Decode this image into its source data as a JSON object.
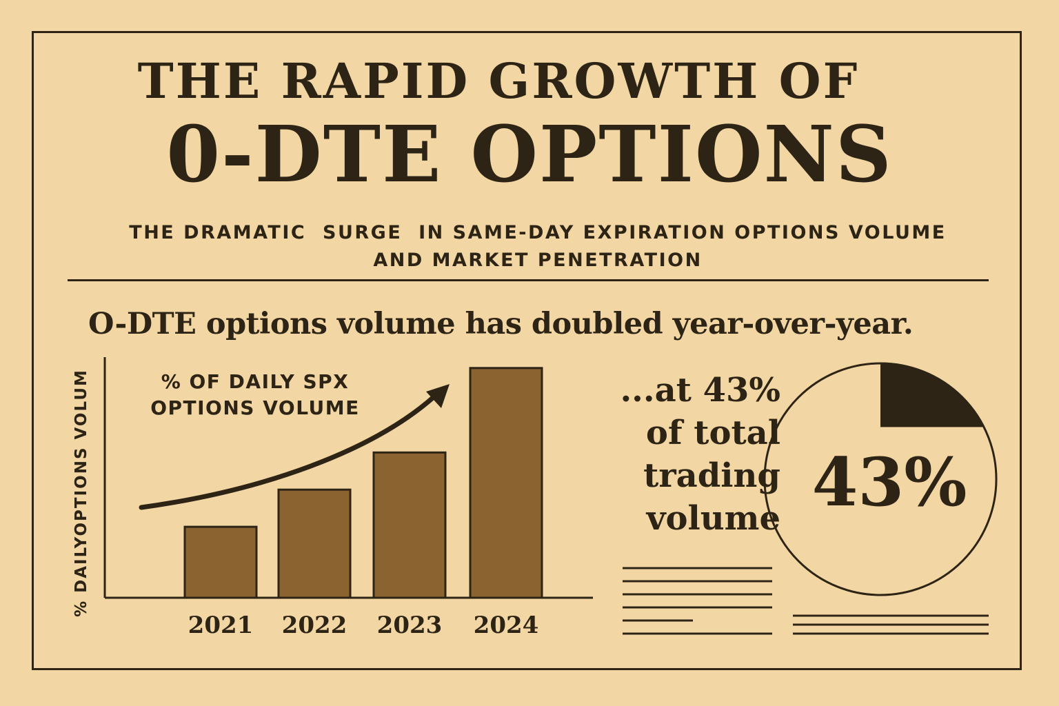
{
  "header": {
    "title_line1": "THE RAPID GROWTH OF",
    "title_line2": "0-DTE OPTIONS",
    "subtitle_line1": "THE DRAMATIC  SURGE  IN SAME-DAY EXPIRATION OPTIONS VOLUME",
    "subtitle_line2": "AND MARKET PENETRATION"
  },
  "headline": "O-DTE options volume has doubled year-over-year.",
  "colors": {
    "background": "#f2d7a4",
    "ink": "#2e2415",
    "bar_fill": "#8a6330"
  },
  "chart_data": [
    {
      "type": "bar",
      "categories": [
        "2021",
        "2022",
        "2023",
        "2024"
      ],
      "values": [
        21,
        32,
        43,
        68
      ],
      "ylim": [
        0,
        70
      ],
      "ylabel": "% DAILYOPTIONS VOLUM",
      "xlabel": "",
      "annotation": "% OF DAILY SPX OPTIONS VOLUME",
      "grid": false,
      "trend_arrow": true
    },
    {
      "type": "pie",
      "values": [
        43
      ],
      "value_label": "43%"
    }
  ],
  "side_callout": {
    "lines": [
      "...at 43%",
      "of total",
      "trading",
      "volume"
    ]
  }
}
